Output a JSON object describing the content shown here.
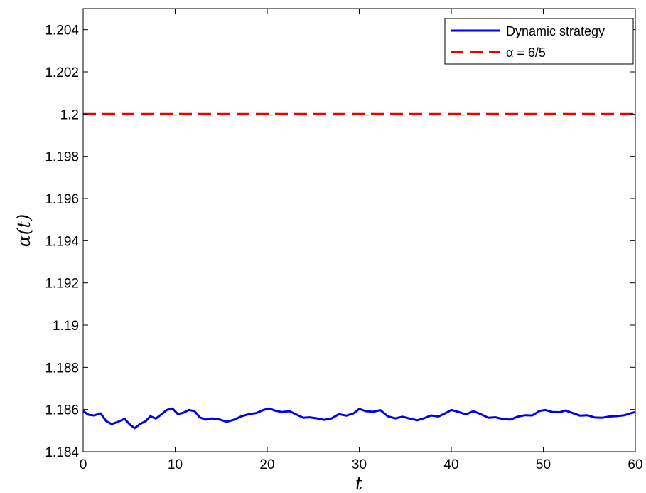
{
  "chart_data": {
    "type": "line",
    "title": "",
    "xlabel": "t",
    "ylabel": "α(t)",
    "xlim": [
      0,
      60
    ],
    "ylim": [
      1.184,
      1.205
    ],
    "xticks": [
      0,
      10,
      20,
      30,
      40,
      50,
      60
    ],
    "xtick_labels": [
      "0",
      "10",
      "20",
      "30",
      "40",
      "50",
      "60"
    ],
    "yticks": [
      1.184,
      1.186,
      1.188,
      1.19,
      1.192,
      1.194,
      1.196,
      1.198,
      1.2,
      1.202,
      1.204
    ],
    "ytick_labels": [
      "1.184",
      "1.186",
      "1.188",
      "1.19",
      "1.192",
      "1.194",
      "1.196",
      "1.198",
      "1.2",
      "1.202",
      "1.204"
    ],
    "grid": false,
    "legend_position": "top-right",
    "series": [
      {
        "name": "Dynamic strategy",
        "color": "#0000ee",
        "style": "solid",
        "x": [
          0,
          0.6,
          1.2,
          1.9,
          2.5,
          3.1,
          3.8,
          4.5,
          5.1,
          5.6,
          6.2,
          6.8,
          7.3,
          7.9,
          8.5,
          9.1,
          9.7,
          10.3,
          10.9,
          11.5,
          12.1,
          12.7,
          13.3,
          14.0,
          14.8,
          15.6,
          16.4,
          17.2,
          18.0,
          18.8,
          19.6,
          20.2,
          20.9,
          21.6,
          22.4,
          23.1,
          23.9,
          24.6,
          25.4,
          26.2,
          27.0,
          27.8,
          28.6,
          29.4,
          30.0,
          30.7,
          31.5,
          32.3,
          33.1,
          33.9,
          34.7,
          35.5,
          36.3,
          37.0,
          37.8,
          38.6,
          39.4,
          40.0,
          40.8,
          41.6,
          42.4,
          43.2,
          44.0,
          44.8,
          45.6,
          46.4,
          47.2,
          48.0,
          48.8,
          49.6,
          50.2,
          51.0,
          51.8,
          52.4,
          53.2,
          54.0,
          54.8,
          55.6,
          56.4,
          57.2,
          58.0,
          58.8,
          59.5,
          60.0
        ],
        "values": [
          1.18592,
          1.18575,
          1.18572,
          1.18582,
          1.18545,
          1.18531,
          1.18542,
          1.18556,
          1.18528,
          1.18512,
          1.18532,
          1.18545,
          1.18568,
          1.18557,
          1.18577,
          1.18598,
          1.18605,
          1.18578,
          1.18585,
          1.18598,
          1.18592,
          1.18562,
          1.18552,
          1.18558,
          1.18553,
          1.18542,
          1.18552,
          1.18568,
          1.18578,
          1.18583,
          1.18598,
          1.18605,
          1.18594,
          1.18588,
          1.18592,
          1.18578,
          1.18561,
          1.18563,
          1.18558,
          1.18551,
          1.18558,
          1.18578,
          1.18571,
          1.18582,
          1.18603,
          1.18592,
          1.18589,
          1.18597,
          1.18568,
          1.18558,
          1.18566,
          1.18557,
          1.18549,
          1.18558,
          1.18572,
          1.18567,
          1.18583,
          1.18598,
          1.18588,
          1.18577,
          1.18592,
          1.18578,
          1.18561,
          1.18563,
          1.18555,
          1.18552,
          1.18566,
          1.18573,
          1.18572,
          1.18593,
          1.18598,
          1.18588,
          1.18587,
          1.18595,
          1.18583,
          1.18571,
          1.18573,
          1.18562,
          1.18561,
          1.18567,
          1.18569,
          1.18573,
          1.18582,
          1.18588
        ]
      },
      {
        "name": "α = 6/5",
        "color": "#ee0000",
        "style": "dashed",
        "x": [
          0,
          60
        ],
        "values": [
          1.2,
          1.2
        ]
      }
    ]
  }
}
